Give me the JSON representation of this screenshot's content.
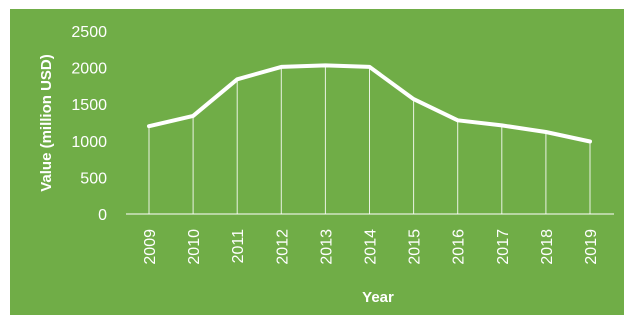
{
  "chart_data": {
    "type": "line",
    "title": "",
    "xlabel": "Year",
    "ylabel": "Value (million USD)",
    "categories": [
      "2009",
      "2010",
      "2011",
      "2012",
      "2013",
      "2014",
      "2015",
      "2016",
      "2017",
      "2018",
      "2019"
    ],
    "series": [
      {
        "values": [
          1200,
          1340,
          1840,
          2010,
          2030,
          2010,
          1570,
          1280,
          1210,
          1120,
          990
        ]
      }
    ],
    "ylim": [
      0,
      2500
    ],
    "yticks": [
      0,
      500,
      1000,
      1500,
      2000,
      2500
    ],
    "grid": false,
    "drop_lines": true,
    "colors": {
      "background": "#70AD47",
      "line": "#ffffff",
      "text": "#ffffff"
    }
  }
}
